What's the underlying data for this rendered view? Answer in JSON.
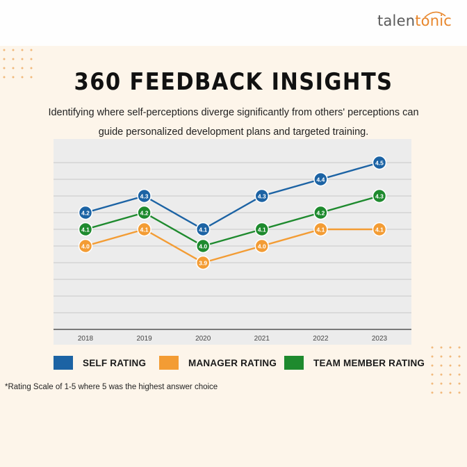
{
  "brand": {
    "logo_prefix": "talen",
    "logo_suffix": "tonic"
  },
  "header": {
    "title": "360 FEEDBACK INSIGHTS",
    "subtitle_line1": "Identifying where self-perceptions diverge significantly from others' perceptions can",
    "subtitle_line2": "guide personalized development plans and targeted training."
  },
  "footnote": "*Rating Scale of 1-5 where 5 was the highest answer choice",
  "colors": {
    "background": "#fdf5ea",
    "chart_background": "#ececec",
    "self": "#1c63a4",
    "manager": "#f39c34",
    "team": "#1e8a2e",
    "dots": "#f1b97c"
  },
  "chart_data": {
    "type": "line",
    "x": [
      "2018",
      "2019",
      "2020",
      "2021",
      "2022",
      "2023"
    ],
    "series": [
      {
        "name": "SELF RATING",
        "color": "#1c63a4",
        "values": [
          4.2,
          4.3,
          4.1,
          4.3,
          4.4,
          4.5
        ],
        "labels": [
          "4.2",
          "4.3",
          "4.1",
          "4.3",
          "4.4",
          "4.5"
        ]
      },
      {
        "name": "MANAGER RATING",
        "color": "#f39c34",
        "values": [
          4.0,
          4.1,
          3.9,
          4.0,
          4.1,
          4.1
        ],
        "labels": [
          "4.0",
          "4.1",
          "3.9",
          "4.0",
          "4.1",
          "4.1"
        ]
      },
      {
        "name": "TEAM MEMBER RATING",
        "color": "#1e8a2e",
        "values": [
          4.1,
          4.2,
          4.0,
          4.1,
          4.2,
          4.3
        ],
        "labels": [
          "4.1",
          "4.2",
          "4.0",
          "4.1",
          "4.2",
          "4.3"
        ]
      }
    ],
    "title": "",
    "xlabel": "",
    "ylabel": "",
    "ylim": [
      3.5,
      4.6
    ],
    "grid": true,
    "legend": "bottom",
    "data_labels": true
  }
}
